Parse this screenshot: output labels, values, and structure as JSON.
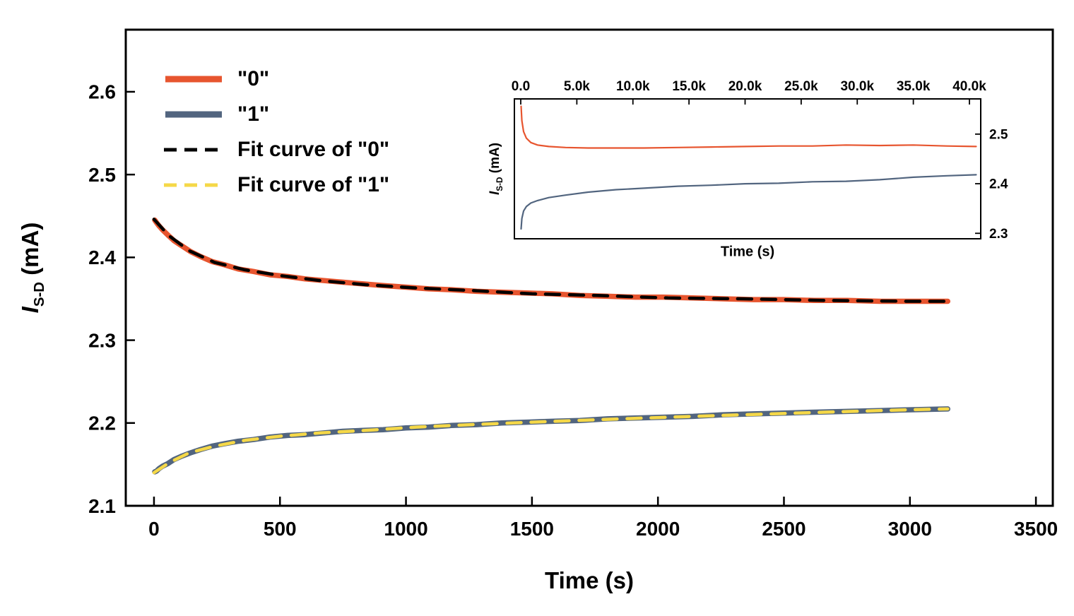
{
  "figure": {
    "background": "#ffffff",
    "frame_color": "#000000"
  },
  "chart_data": [
    {
      "id": "main",
      "type": "line",
      "title": "",
      "xlabel": "Time (s)",
      "ylabel_symbol": "I",
      "ylabel_sub": "S-D",
      "ylabel_unit": " (mA)",
      "xlim": [
        -112,
        3567
      ],
      "ylim": [
        2.1,
        2.675
      ],
      "grid": false,
      "legend_position": "top-left",
      "xticks": [
        {
          "v": 0,
          "label": "0"
        },
        {
          "v": 500,
          "label": "500"
        },
        {
          "v": 1000,
          "label": "1000"
        },
        {
          "v": 1500,
          "label": "1500"
        },
        {
          "v": 2000,
          "label": "2000"
        },
        {
          "v": 2500,
          "label": "2500"
        },
        {
          "v": 3000,
          "label": "3000"
        },
        {
          "v": 3500,
          "label": "3500"
        }
      ],
      "yticks": [
        {
          "v": 2.1,
          "label": "2.1"
        },
        {
          "v": 2.2,
          "label": "2.2"
        },
        {
          "v": 2.3,
          "label": "2.3"
        },
        {
          "v": 2.4,
          "label": "2.4"
        },
        {
          "v": 2.5,
          "label": "2.5"
        },
        {
          "v": 2.6,
          "label": "2.6"
        }
      ],
      "series": [
        {
          "name": "\"0\"",
          "color": "#e7552f",
          "width": 7.5,
          "dash": "",
          "x": [
            3,
            10,
            20,
            35,
            55,
            80,
            110,
            145,
            185,
            230,
            280,
            335,
            395,
            460,
            530,
            600,
            675,
            750,
            830,
            910,
            1000,
            1090,
            1180,
            1280,
            1380,
            1480,
            1580,
            1690,
            1800,
            1910,
            2020,
            2140,
            2260,
            2380,
            2500,
            2620,
            2750,
            2880,
            3010,
            3150
          ],
          "y": [
            2.445,
            2.442,
            2.438,
            2.433,
            2.427,
            2.42,
            2.414,
            2.407,
            2.401,
            2.395,
            2.391,
            2.386,
            2.383,
            2.379,
            2.377,
            2.374,
            2.372,
            2.37,
            2.368,
            2.366,
            2.364,
            2.362,
            2.361,
            2.359,
            2.358,
            2.357,
            2.356,
            2.354,
            2.353,
            2.352,
            2.352,
            2.351,
            2.35,
            2.349,
            2.349,
            2.348,
            2.348,
            2.347,
            2.347,
            2.347
          ]
        },
        {
          "name": "\"1\"",
          "color": "#52657f",
          "width": 7.5,
          "dash": "",
          "x": [
            3,
            10,
            20,
            35,
            55,
            80,
            110,
            145,
            185,
            230,
            280,
            335,
            395,
            460,
            530,
            600,
            675,
            750,
            830,
            910,
            1000,
            1090,
            1180,
            1280,
            1380,
            1480,
            1580,
            1690,
            1800,
            1910,
            2020,
            2140,
            2260,
            2380,
            2500,
            2620,
            2750,
            2880,
            3010,
            3150
          ],
          "y": [
            2.141,
            2.142,
            2.145,
            2.148,
            2.151,
            2.156,
            2.16,
            2.164,
            2.168,
            2.172,
            2.175,
            2.178,
            2.18,
            2.183,
            2.185,
            2.186,
            2.188,
            2.19,
            2.191,
            2.192,
            2.194,
            2.195,
            2.197,
            2.198,
            2.2,
            2.201,
            2.202,
            2.203,
            2.205,
            2.206,
            2.207,
            2.208,
            2.21,
            2.211,
            2.212,
            2.213,
            2.214,
            2.215,
            2.216,
            2.217
          ]
        },
        {
          "name": "Fit curve of \"0\"",
          "color": "#000000",
          "width": 4.5,
          "dash": "20 14",
          "x": [
            0,
            60,
            140,
            240,
            360,
            500,
            660,
            840,
            1040,
            1260,
            1500,
            1760,
            2040,
            2340,
            2660,
            3000,
            3150
          ],
          "y": [
            2.446,
            2.426,
            2.408,
            2.394,
            2.385,
            2.378,
            2.372,
            2.367,
            2.363,
            2.36,
            2.356,
            2.354,
            2.351,
            2.35,
            2.348,
            2.347,
            2.347
          ]
        },
        {
          "name": "Fit curve of \"1\"",
          "color": "#f5d848",
          "width": 4.5,
          "dash": "20 14",
          "x": [
            0,
            60,
            140,
            240,
            360,
            500,
            660,
            840,
            1040,
            1260,
            1500,
            1760,
            2040,
            2340,
            2660,
            3000,
            3150
          ],
          "y": [
            2.14,
            2.152,
            2.164,
            2.172,
            2.179,
            2.184,
            2.188,
            2.191,
            2.195,
            2.198,
            2.201,
            2.204,
            2.207,
            2.21,
            2.213,
            2.216,
            2.217
          ]
        }
      ]
    },
    {
      "id": "inset",
      "type": "line",
      "title": "",
      "xlabel": "Time (s)",
      "ylabel_symbol": "I",
      "ylabel_sub": "S-D",
      "ylabel_unit": " (mA)",
      "xlim": [
        -567,
        41008
      ],
      "ylim": [
        2.289,
        2.571
      ],
      "grid": false,
      "xticks": [
        {
          "v": 0,
          "label": "0.0"
        },
        {
          "v": 5000,
          "label": "5.0k"
        },
        {
          "v": 10000,
          "label": "10.0k"
        },
        {
          "v": 15000,
          "label": "15.0k"
        },
        {
          "v": 20000,
          "label": "20.0k"
        },
        {
          "v": 25000,
          "label": "25.0k"
        },
        {
          "v": 30000,
          "label": "30.0k"
        },
        {
          "v": 35000,
          "label": "35.0k"
        },
        {
          "v": 40000,
          "label": "40.0k"
        }
      ],
      "yticks": [
        {
          "v": 2.3,
          "label": "2.3"
        },
        {
          "v": 2.4,
          "label": "2.4"
        },
        {
          "v": 2.5,
          "label": "2.5"
        }
      ],
      "series": [
        {
          "name": "\"0\"",
          "color": "#e7552f",
          "width": 2.2,
          "dash": "",
          "x": [
            30,
            100,
            250,
            500,
            900,
            1500,
            2500,
            4000,
            6000,
            8500,
            11000,
            14000,
            17000,
            20000,
            23000,
            26000,
            29000,
            32000,
            35000,
            38000,
            40600
          ],
          "y": [
            2.556,
            2.527,
            2.505,
            2.492,
            2.483,
            2.478,
            2.475,
            2.473,
            2.472,
            2.472,
            2.472,
            2.473,
            2.474,
            2.475,
            2.476,
            2.476,
            2.478,
            2.477,
            2.478,
            2.476,
            2.475
          ]
        },
        {
          "name": "\"1\"",
          "color": "#52657f",
          "width": 2.2,
          "dash": "",
          "x": [
            30,
            100,
            250,
            500,
            900,
            1500,
            2500,
            4000,
            6000,
            8500,
            11000,
            14000,
            17000,
            20000,
            23000,
            26000,
            29000,
            32000,
            35000,
            38000,
            40600
          ],
          "y": [
            2.309,
            2.33,
            2.345,
            2.354,
            2.361,
            2.366,
            2.372,
            2.377,
            2.383,
            2.388,
            2.391,
            2.395,
            2.397,
            2.4,
            2.401,
            2.404,
            2.405,
            2.408,
            2.413,
            2.416,
            2.418
          ]
        }
      ]
    }
  ]
}
